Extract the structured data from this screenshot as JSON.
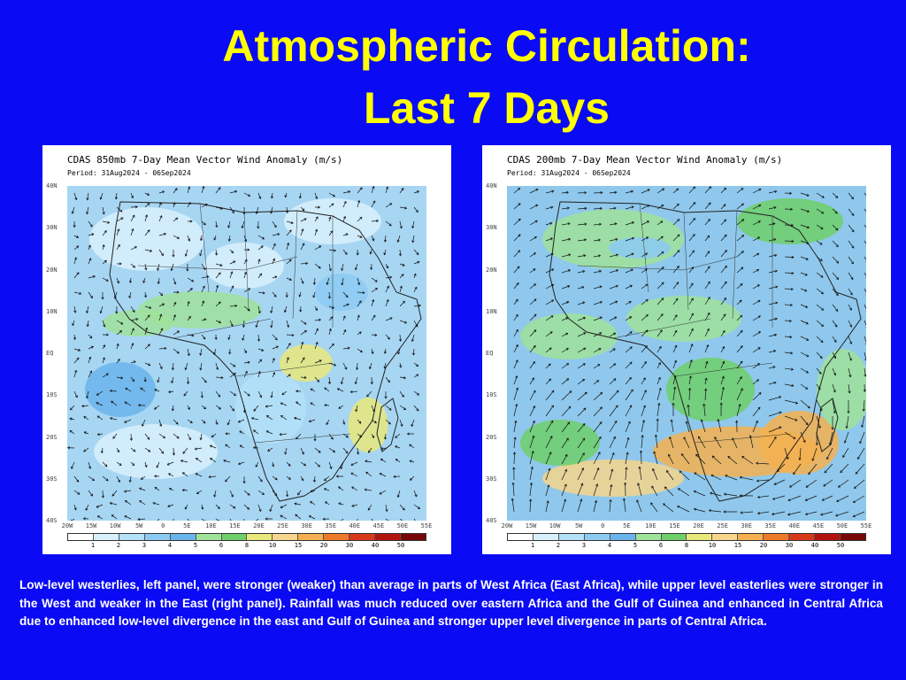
{
  "slide": {
    "title_line1": "Atmospheric Circulation:",
    "title_line2": "Last 7 Days",
    "caption": "Low-level westerlies, left panel, were stronger (weaker) than average in parts of West Africa (East Africa), while upper level easterlies were stronger in the West and weaker in the East (right panel). Rainfall was much reduced over eastern Africa and the Gulf of Guinea and enhanced in Central Africa due to enhanced low-level divergence in the east and Gulf of Guinea and stronger upper level divergence in parts of Central Africa."
  },
  "panels": [
    {
      "title": "CDAS 850mb 7-Day Mean Vector Wind Anomaly (m/s)",
      "period": "Period: 31Aug2024 - 06Sep2024"
    },
    {
      "title": "CDAS 200mb 7-Day Mean Vector Wind Anomaly (m/s)",
      "period": "Period: 31Aug2024 - 06Sep2024"
    }
  ],
  "axes": {
    "lat_labels": [
      "40N",
      "30N",
      "20N",
      "10N",
      "EQ",
      "10S",
      "20S",
      "30S",
      "40S"
    ],
    "lon_labels": [
      "20W",
      "15W",
      "10W",
      "5W",
      "0",
      "5E",
      "10E",
      "15E",
      "20E",
      "25E",
      "30E",
      "35E",
      "40E",
      "45E",
      "50E",
      "55E"
    ]
  },
  "colorbar": {
    "ticks": [
      "1",
      "2",
      "3",
      "4",
      "5",
      "6",
      "8",
      "10",
      "15",
      "20",
      "30",
      "40",
      "50"
    ],
    "colors": [
      "#ffffff",
      "#d8f0fb",
      "#b4e0f8",
      "#8ccaf2",
      "#6ab4ec",
      "#9fe29a",
      "#6fcf6a",
      "#e8e87a",
      "#f6d58c",
      "#f4b050",
      "#ec7a28",
      "#d63a1a",
      "#b0140c",
      "#780808"
    ]
  }
}
